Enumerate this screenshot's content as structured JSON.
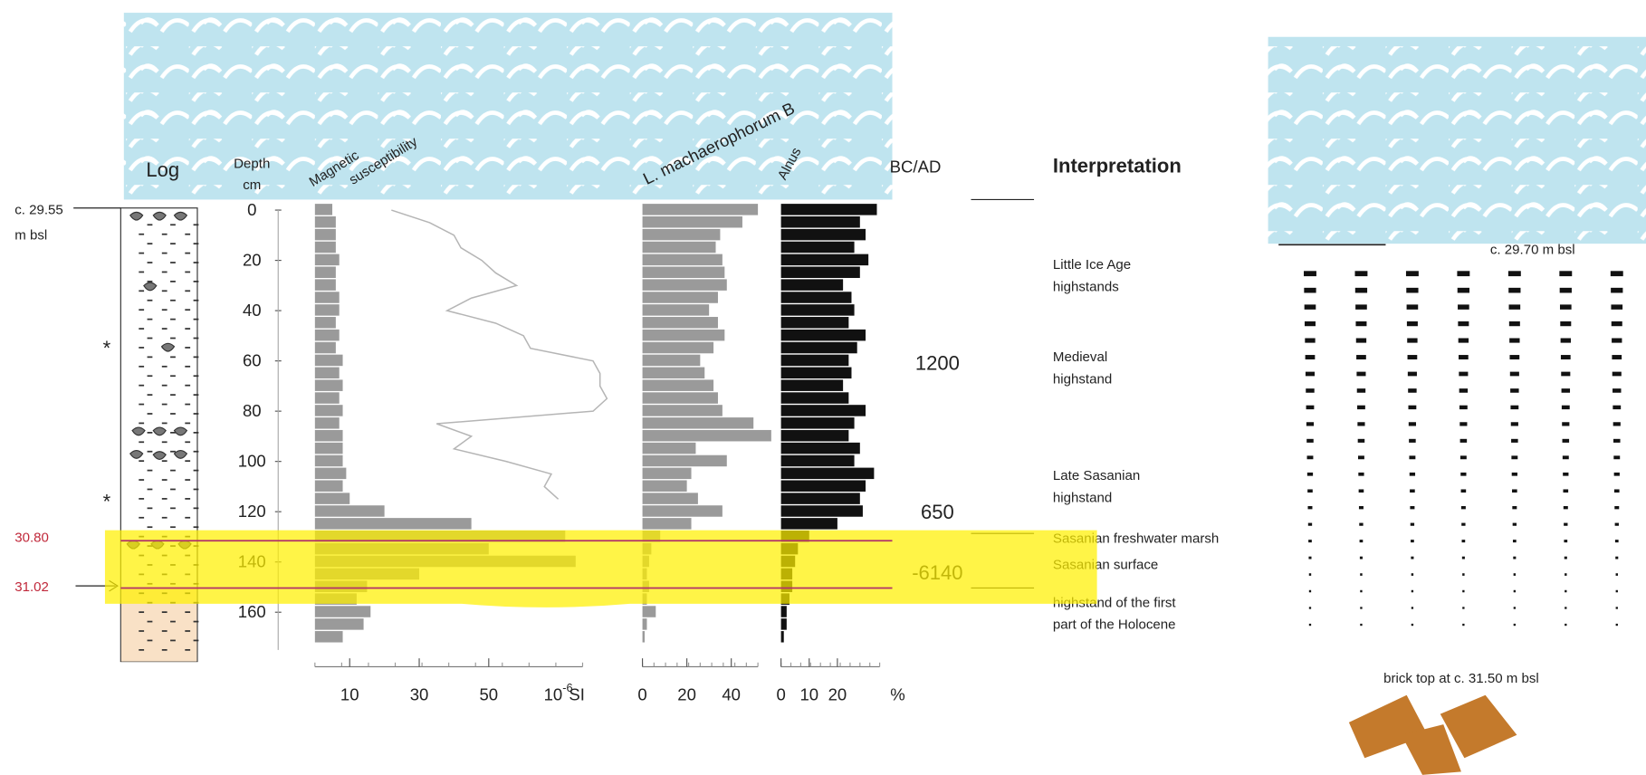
{
  "log": {
    "title": "Log",
    "top_label": "c. 29.55",
    "top_unit": "m bsl",
    "marker_top": {
      "value": 30.8,
      "label": "30.80"
    },
    "marker_bottom": 31.02
  },
  "depth": {
    "label": "Depth",
    "unit": "cm",
    "lim": [
      0,
      175
    ],
    "ticks": [
      0,
      20,
      40,
      60,
      80,
      100,
      120,
      140,
      160
    ],
    "values": [
      0,
      5,
      10,
      15,
      20,
      25,
      30,
      35,
      40,
      45,
      50,
      55,
      60,
      65,
      70,
      75,
      80,
      85,
      90,
      95,
      100,
      105,
      110,
      115,
      120,
      125,
      130,
      135,
      140,
      145,
      150,
      155,
      160,
      165,
      170
    ]
  },
  "magnetic": {
    "label_1": "Magnetic",
    "label_2": "susceptibility",
    "xlim": [
      0,
      77
    ],
    "xticks": [
      10,
      30,
      50
    ],
    "unit_base": "10",
    "unit_exp": "-6",
    "unit": "SI",
    "fill_color": "#9a9a9a",
    "line_color": "#b5b5b5",
    "values": [
      5,
      6,
      6,
      6,
      7,
      6,
      6,
      7,
      7,
      6,
      7,
      6,
      8,
      7,
      8,
      7,
      8,
      7,
      8,
      8,
      8,
      9,
      8,
      10,
      20,
      45,
      72,
      50,
      75,
      30,
      15,
      12,
      16,
      14,
      8
    ],
    "line_values": [
      22,
      33,
      40,
      42,
      48,
      52,
      58,
      45,
      38,
      52,
      60,
      62,
      80,
      82,
      82,
      84,
      80,
      35,
      45,
      40,
      55,
      68,
      66,
      70,
      null,
      null,
      null,
      null,
      null,
      null,
      null,
      null,
      null,
      null,
      null
    ]
  },
  "dinocyst": {
    "label": "L. machaerophorum B",
    "xlim": [
      0,
      52
    ],
    "xticks": [
      0,
      20,
      40
    ],
    "color": "#9a9a9a",
    "values": [
      52,
      45,
      35,
      33,
      36,
      37,
      38,
      34,
      30,
      34,
      37,
      32,
      26,
      28,
      32,
      34,
      36,
      50,
      58,
      24,
      38,
      22,
      20,
      25,
      36,
      22,
      8,
      4,
      3,
      2,
      3,
      2,
      6,
      2,
      1
    ]
  },
  "alnus": {
    "label": "Alnus",
    "xlim": [
      0,
      35
    ],
    "xticks": [
      0,
      10,
      20
    ],
    "unit": "%",
    "color": "#111111",
    "values": [
      34,
      28,
      30,
      26,
      31,
      28,
      22,
      25,
      26,
      24,
      30,
      27,
      24,
      25,
      22,
      24,
      30,
      26,
      24,
      28,
      26,
      33,
      30,
      28,
      29,
      20,
      10,
      6,
      5,
      4,
      4,
      3,
      2,
      2,
      1
    ]
  },
  "chronology": {
    "title": "BC/AD",
    "dates": [
      1200,
      650,
      -6140
    ]
  },
  "interpretation": {
    "title": "Interpretation",
    "items": [
      [
        "Little Ice Age",
        "highstands"
      ],
      [
        "Medieval",
        "highstand"
      ],
      [
        "Late Sasanian",
        "highstand"
      ],
      [
        "Sasanian freshwater marsh"
      ],
      [
        "Sasanian surface"
      ],
      [
        "highstand of the first",
        "part of the Holocene"
      ]
    ]
  },
  "section": {
    "top_label": "c. 29.70 m bsl",
    "bottom_label": "brick top at  c. 31.50 m bsl"
  }
}
